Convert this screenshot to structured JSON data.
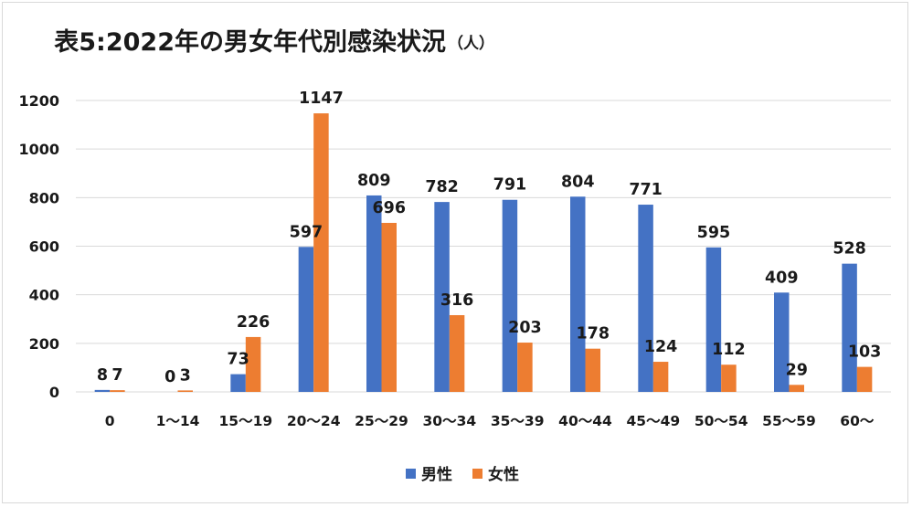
{
  "chart_data": {
    "type": "bar",
    "title": "表5:2022年の男女年代別感染状況",
    "title_unit": "（人）",
    "xlabel": "",
    "ylabel": "",
    "ylim": [
      0,
      1200
    ],
    "y_ticks": [
      0,
      200,
      400,
      600,
      800,
      1000,
      1200
    ],
    "y_tick_labels": [
      "0",
      "200",
      "400",
      "600",
      "800",
      "1000",
      "1200"
    ],
    "categories": [
      "0",
      "1～14",
      "15～19",
      "20～24",
      "25～29",
      "30～34",
      "35～39",
      "40～44",
      "45～49",
      "50～54",
      "55～59",
      "60～"
    ],
    "series": [
      {
        "name": "男性",
        "color": "#4472c4",
        "values": [
          8,
          0,
          73,
          597,
          809,
          782,
          791,
          804,
          771,
          595,
          409,
          528
        ]
      },
      {
        "name": "女性",
        "color": "#ed7d31",
        "values": [
          7,
          3,
          226,
          1147,
          696,
          316,
          203,
          178,
          124,
          112,
          29,
          103
        ]
      }
    ],
    "grid": true,
    "gridline_color": "#d9d9d9",
    "legend_position": "bottom"
  }
}
